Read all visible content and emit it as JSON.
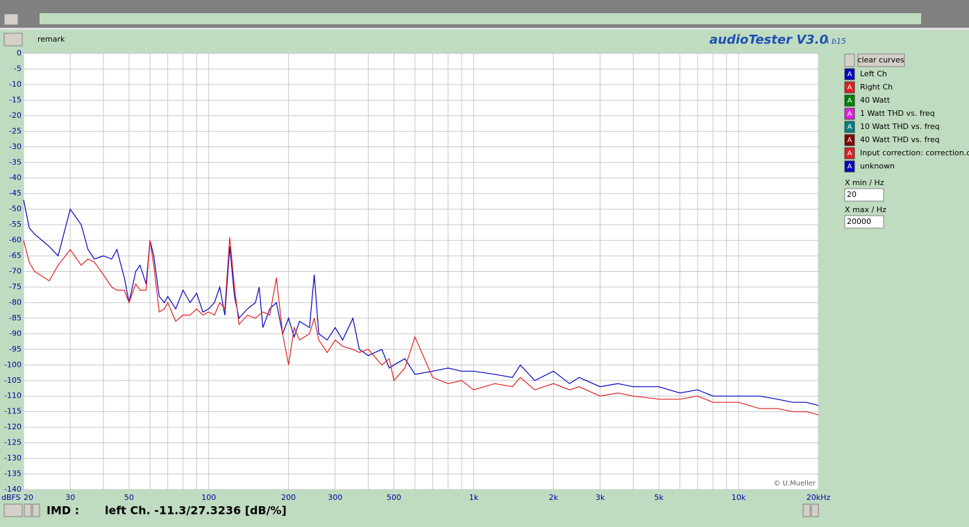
{
  "app": {
    "remark": "remark",
    "title": "audioTester V3.0",
    "version": "A b15",
    "clear_button": "clear curves",
    "curve_button_glyph": "A",
    "other_curves": [
      {
        "label": "40 Watt",
        "color": "#008000"
      },
      {
        "label": "1 Watt THD vs. freq",
        "color": "#e020e0"
      },
      {
        "label": "10 Watt THD vs. freq",
        "color": "#008080"
      },
      {
        "label": "40 Watt THD vs. freq",
        "color": "#800000"
      },
      {
        "label": "Input correction: correction.cor",
        "color": "#e02020"
      },
      {
        "label": "unknown",
        "color": "#0000c0"
      }
    ],
    "x_min_label": "X min / Hz",
    "x_min_value": "20",
    "x_max_label": "X max / Hz",
    "x_max_value": "20000",
    "status_mode": "IMD :",
    "status_reading": "left Ch. -11.3/27.3236 [dB/%]",
    "copyright": "© U.Mueller"
  },
  "chart_data": {
    "type": "line",
    "y_label": "dBFS",
    "log_x": true,
    "grid": true,
    "xlim": [
      20,
      20000
    ],
    "ylim": [
      -140,
      0
    ],
    "xticks": [
      20,
      30,
      50,
      100,
      200,
      300,
      500,
      {
        "value": 1000,
        "label": "1k"
      },
      {
        "value": 2000,
        "label": "2k"
      },
      {
        "value": 3000,
        "label": "3k"
      },
      {
        "value": 5000,
        "label": "5k"
      },
      {
        "value": 10000,
        "label": "10k"
      },
      {
        "value": 20000,
        "label": "20kHz"
      }
    ],
    "xgrid": [
      40,
      60,
      70,
      80,
      90,
      400,
      600,
      700,
      800,
      900,
      4000,
      6000,
      7000,
      8000,
      9000
    ],
    "yticks": [
      0,
      -5,
      -10,
      -15,
      -20,
      -25,
      -30,
      -35,
      -40,
      -45,
      -50,
      -55,
      -60,
      -65,
      -70,
      -75,
      -80,
      -85,
      -90,
      -95,
      -100,
      -105,
      -110,
      -115,
      -120,
      -125,
      -130,
      -135,
      -140
    ],
    "x": [
      20,
      21,
      22,
      25,
      27,
      30,
      33,
      35,
      37,
      40,
      43,
      45,
      48,
      50,
      53,
      55,
      58,
      60,
      62,
      65,
      68,
      70,
      75,
      80,
      85,
      90,
      95,
      100,
      105,
      110,
      115,
      120,
      125,
      130,
      140,
      150,
      155,
      160,
      170,
      180,
      190,
      200,
      210,
      220,
      240,
      250,
      260,
      280,
      300,
      320,
      350,
      370,
      400,
      450,
      480,
      500,
      550,
      600,
      700,
      800,
      900,
      1000,
      1200,
      1400,
      1500,
      1700,
      2000,
      2300,
      2500,
      3000,
      3500,
      4000,
      5000,
      6000,
      7000,
      8000,
      10000,
      12000,
      14000,
      16000,
      18000,
      20000
    ],
    "series": [
      {
        "name": "Left Ch",
        "color": "#0000c0",
        "values": [
          -47,
          -56,
          -58,
          -62,
          -65,
          -50,
          -55,
          -63,
          -66,
          -65,
          -66,
          -63,
          -72,
          -80,
          -70,
          -68,
          -74,
          -60,
          -65,
          -78,
          -80,
          -78,
          -82,
          -76,
          -80,
          -77,
          -83,
          -82,
          -80,
          -75,
          -84,
          -62,
          -78,
          -85,
          -82,
          -80,
          -75,
          -88,
          -82,
          -80,
          -90,
          -85,
          -91,
          -86,
          -88,
          -71,
          -90,
          -92,
          -88,
          -92,
          -85,
          -95,
          -97,
          -95,
          -101,
          -100,
          -98,
          -103,
          -102,
          -101,
          -102,
          -102,
          -103,
          -104,
          -100,
          -105,
          -102,
          -106,
          -104,
          -107,
          -106,
          -107,
          -107,
          -109,
          -108,
          -110,
          -110,
          -110,
          -111,
          -112,
          -112,
          -113
        ]
      },
      {
        "name": "Right Ch",
        "color": "#e02020",
        "values": [
          -60,
          -67,
          -70,
          -73,
          -68,
          -63,
          -68,
          -66,
          -67,
          -71,
          -75,
          -76,
          -76,
          -80,
          -74,
          -76,
          -76,
          -60,
          -68,
          -83,
          -82,
          -80,
          -86,
          -84,
          -84,
          -82,
          -84,
          -83,
          -84,
          -80,
          -82,
          -59,
          -75,
          -87,
          -84,
          -85,
          -84,
          -83,
          -84,
          -72,
          -90,
          -100,
          -88,
          -92,
          -90,
          -85,
          -92,
          -96,
          -92,
          -94,
          -95,
          -96,
          -95,
          -100,
          -98,
          -105,
          -101,
          -91,
          -104,
          -106,
          -105,
          -108,
          -106,
          -107,
          -104,
          -108,
          -106,
          -108,
          -107,
          -110,
          -109,
          -110,
          -111,
          -111,
          -110,
          -112,
          -112,
          -114,
          -114,
          -115,
          -115,
          -116
        ]
      }
    ]
  }
}
